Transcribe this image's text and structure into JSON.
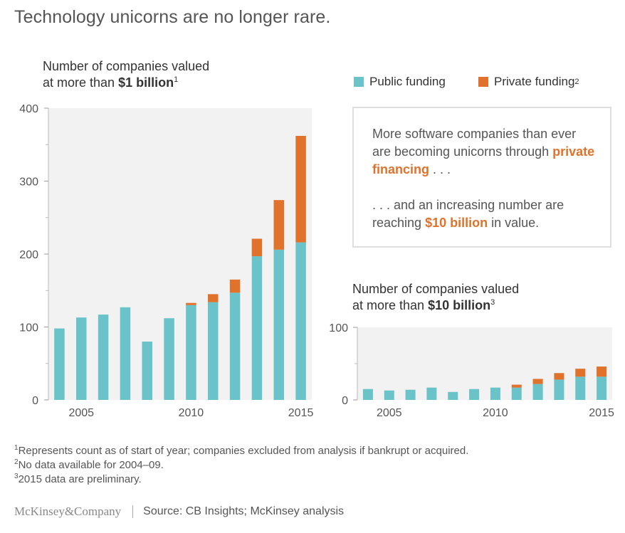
{
  "title": "Technology unicorns are no longer rare.",
  "colors": {
    "public": "#6ac3c8",
    "private": "#e0722b",
    "plot_bg": "#f2f2f2",
    "axis_text": "#555555"
  },
  "legend": {
    "public": "Public funding",
    "private": "Private funding",
    "private_sup": "2"
  },
  "callout": {
    "p1_pre": "More software companies than ever are becoming unicorns through ",
    "p1_hl": "private financing",
    "p1_post": " . . .",
    "p2_pre": ". . . and an increasing number are reaching ",
    "p2_hl": "$10 billion",
    "p2_post": " in value."
  },
  "chart_data": [
    {
      "type": "bar",
      "stacked": true,
      "title_line1": "Number of companies valued",
      "title_line2_pre": "at more than ",
      "title_line2_bold": "$1 billion",
      "title_sup": "1",
      "x": [
        2004,
        2005,
        2006,
        2007,
        2008,
        2009,
        2010,
        2011,
        2012,
        2013,
        2014,
        2015
      ],
      "x_tick_labels": [
        "2005",
        "2010",
        "2015"
      ],
      "x_tick_values": [
        2005,
        2010,
        2015
      ],
      "ylim": [
        0,
        400
      ],
      "y_tick_labels": [
        "0",
        "100",
        "200",
        "300",
        "400"
      ],
      "y_tick_values": [
        0,
        100,
        200,
        300,
        400
      ],
      "series": [
        {
          "name": "Public funding",
          "values": [
            98,
            113,
            117,
            127,
            80,
            112,
            130,
            134,
            147,
            197,
            206,
            216
          ]
        },
        {
          "name": "Private funding",
          "values": [
            0,
            0,
            0,
            0,
            0,
            0,
            3,
            11,
            18,
            24,
            68,
            146
          ]
        }
      ]
    },
    {
      "type": "bar",
      "stacked": true,
      "title_line1": "Number of companies valued",
      "title_line2_pre": "at more than ",
      "title_line2_bold": "$10 billion",
      "title_sup": "3",
      "x": [
        2004,
        2005,
        2006,
        2007,
        2008,
        2009,
        2010,
        2011,
        2012,
        2013,
        2014,
        2015
      ],
      "x_tick_labels": [
        "2005",
        "2010",
        "2015"
      ],
      "x_tick_values": [
        2005,
        2010,
        2015
      ],
      "ylim": [
        0,
        100
      ],
      "y_tick_labels": [
        "0",
        "100"
      ],
      "y_tick_values": [
        0,
        100
      ],
      "series": [
        {
          "name": "Public funding",
          "values": [
            15,
            13,
            14,
            17,
            11,
            15,
            17,
            17,
            22,
            28,
            32,
            32
          ]
        },
        {
          "name": "Private funding",
          "values": [
            0,
            0,
            0,
            0,
            0,
            0,
            0,
            4,
            7,
            9,
            11,
            14
          ]
        }
      ]
    }
  ],
  "footnotes": {
    "n1_sup": "1",
    "n1": "Represents count as of start of year; companies excluded from analysis if bankrupt or acquired.",
    "n2_sup": "2",
    "n2": "No data available for 2004–09.",
    "n3_sup": "3",
    "n3": "2015 data are preliminary."
  },
  "footer": {
    "logo": "McKinsey&Company",
    "source": "Source: CB Insights; McKinsey analysis"
  }
}
